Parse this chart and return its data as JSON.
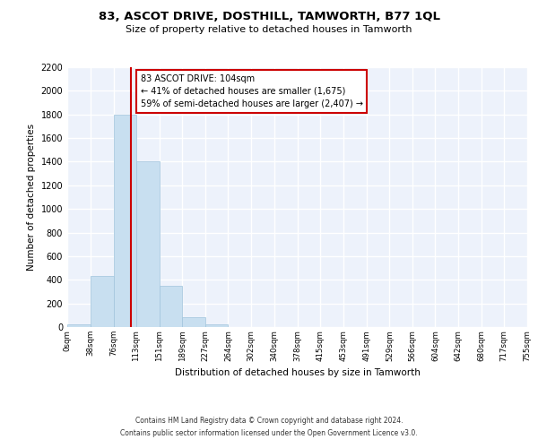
{
  "title": "83, ASCOT DRIVE, DOSTHILL, TAMWORTH, B77 1QL",
  "subtitle": "Size of property relative to detached houses in Tamworth",
  "xlabel": "Distribution of detached houses by size in Tamworth",
  "ylabel": "Number of detached properties",
  "bin_edges": [
    0,
    38,
    76,
    113,
    151,
    189,
    227,
    264,
    302,
    340,
    378,
    415,
    453,
    491,
    529,
    566,
    604,
    642,
    680,
    717,
    755
  ],
  "bar_heights": [
    20,
    430,
    1800,
    1400,
    350,
    80,
    25,
    0,
    0,
    0,
    0,
    0,
    0,
    0,
    0,
    0,
    0,
    0,
    0,
    0
  ],
  "bar_color": "#c8dff0",
  "bar_edge_color": "#a0c4dc",
  "property_line_x": 104,
  "property_line_color": "#cc0000",
  "annotation_line1": "83 ASCOT DRIVE: 104sqm",
  "annotation_line2": "← 41% of detached houses are smaller (1,675)",
  "annotation_line3": "59% of semi-detached houses are larger (2,407) →",
  "annotation_box_color": "#ffffff",
  "annotation_box_edge": "#cc0000",
  "ylim": [
    0,
    2200
  ],
  "yticks": [
    0,
    200,
    400,
    600,
    800,
    1000,
    1200,
    1400,
    1600,
    1800,
    2000,
    2200
  ],
  "xtick_labels": [
    "0sqm",
    "38sqm",
    "76sqm",
    "113sqm",
    "151sqm",
    "189sqm",
    "227sqm",
    "264sqm",
    "302sqm",
    "340sqm",
    "378sqm",
    "415sqm",
    "453sqm",
    "491sqm",
    "529sqm",
    "566sqm",
    "604sqm",
    "642sqm",
    "680sqm",
    "717sqm",
    "755sqm"
  ],
  "footer_line1": "Contains HM Land Registry data © Crown copyright and database right 2024.",
  "footer_line2": "Contains public sector information licensed under the Open Government Licence v3.0.",
  "background_color": "#edf2fb",
  "grid_color": "#ffffff"
}
